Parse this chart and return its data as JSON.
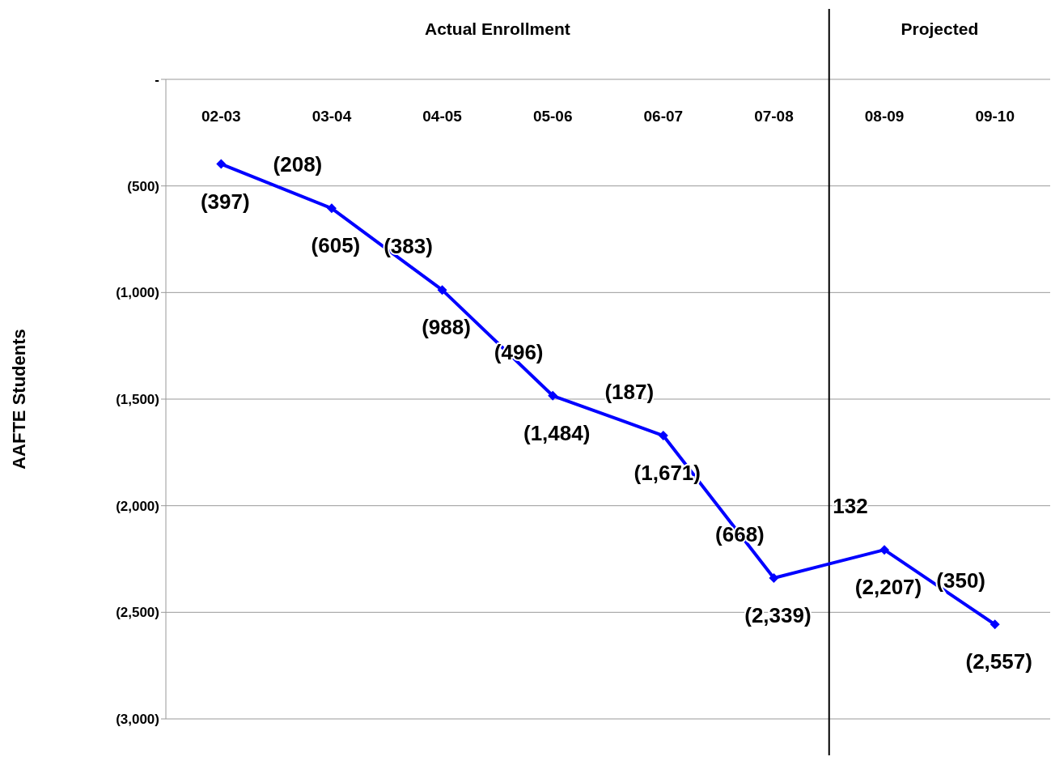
{
  "chart_data": {
    "type": "line",
    "ylabel": "AAFTE Students",
    "categories": [
      "02-03",
      "03-04",
      "04-05",
      "05-06",
      "06-07",
      "07-08",
      "08-09",
      "09-10"
    ],
    "series": [
      {
        "color": "#0000ff",
        "values": [
          -397,
          -605,
          -988,
          -1484,
          -1671,
          -2339,
          -2207,
          -2557
        ],
        "value_labels": [
          "(397)",
          "(605)",
          "(988)",
          "(1,484)",
          "(1,671)",
          "(2,339)",
          "(2,207)",
          "(2,557)"
        ]
      }
    ],
    "ylim": [
      -3000,
      0
    ],
    "yticks": [
      {
        "value": 0,
        "label": "-"
      },
      {
        "value": -500,
        "label": "(500)"
      },
      {
        "value": -1000,
        "label": "(1,000)"
      },
      {
        "value": -1500,
        "label": "(1,500)"
      },
      {
        "value": -2000,
        "label": "(2,000)"
      },
      {
        "value": -2500,
        "label": "(2,500)"
      },
      {
        "value": -3000,
        "label": "(3,000)"
      }
    ],
    "grid": "y",
    "marker": "diamond",
    "line_style": "solid",
    "legend": false,
    "ref_lines": [
      {
        "axis": "x",
        "value": "08-09",
        "label": "Projected",
        "color": "#000000"
      }
    ],
    "annotations": [
      "Actual Enrollment",
      {
        "text": "(208)",
        "x": "03-04",
        "y": -605
      },
      {
        "text": "(383)",
        "x": "04-05",
        "y": -988
      },
      {
        "text": "(496)",
        "x": "05-06",
        "y": -1484
      },
      {
        "text": "(187)",
        "x": "06-07",
        "y": -1671
      },
      {
        "text": "(668)",
        "x": "07-08",
        "y": -2339
      },
      {
        "text": "132",
        "x": "08-09",
        "y": -2207
      },
      {
        "text": "(350)",
        "x": "09-10",
        "y": -2557
      }
    ]
  }
}
